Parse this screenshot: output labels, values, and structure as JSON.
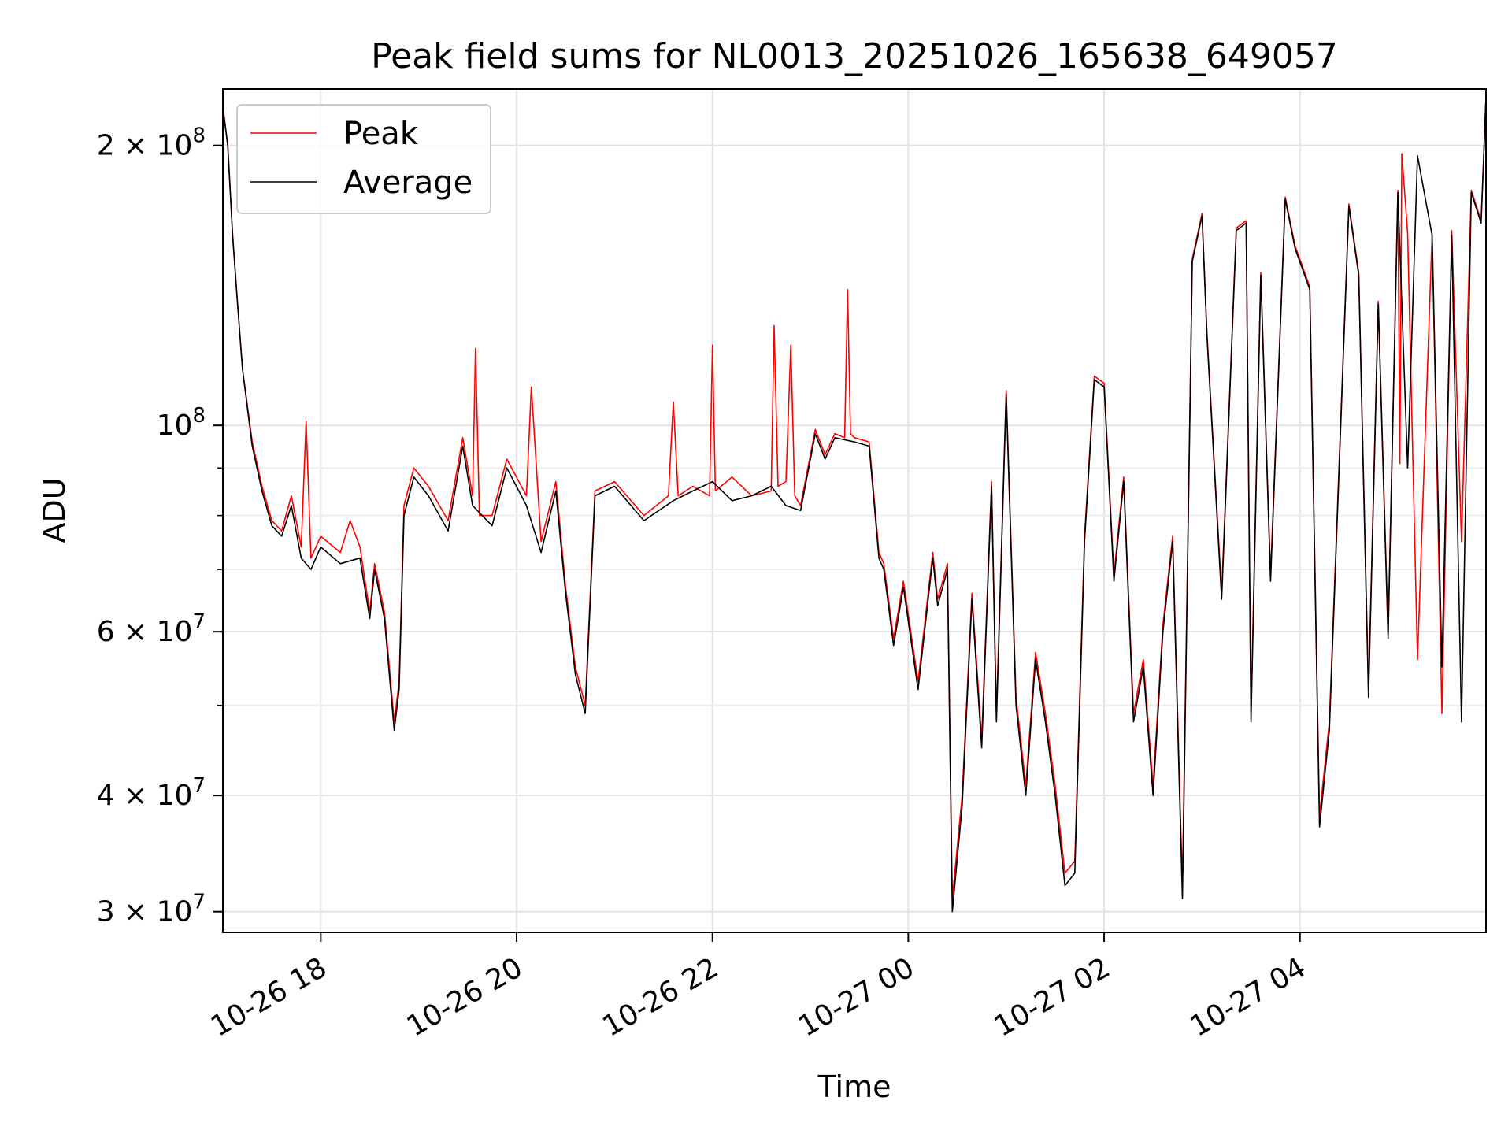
{
  "chart_data": {
    "type": "line",
    "title": "Peak field sums for NL0013_20251026_165638_649057",
    "xlabel": "Time",
    "ylabel": "ADU",
    "yscale": "log",
    "ylim": [
      28500000,
      230000000
    ],
    "xlim_hours": [
      17.0,
      5.9
    ],
    "x_ticks": [
      {
        "label": "10-26 18",
        "hour": 18
      },
      {
        "label": "10-26 20",
        "hour": 20
      },
      {
        "label": "10-26 22",
        "hour": 22
      },
      {
        "label": "10-27 00",
        "hour": 24
      },
      {
        "label": "10-27 02",
        "hour": 26
      },
      {
        "label": "10-27 04",
        "hour": 28
      }
    ],
    "y_ticks": [
      {
        "value": 30000000,
        "mant": "3",
        "exp": "7"
      },
      {
        "value": 40000000,
        "mant": "4",
        "exp": "7"
      },
      {
        "value": 60000000,
        "mant": "6",
        "exp": "7"
      },
      {
        "value": 100000000,
        "mant": "",
        "exp": "8"
      },
      {
        "value": 200000000,
        "mant": "2",
        "exp": "8"
      }
    ],
    "y_minor_ticks": [
      50000000,
      70000000,
      80000000,
      90000000
    ],
    "grid": true,
    "legend": {
      "position": "top-left",
      "entries": [
        {
          "name": "Peak",
          "color": "#ff0000"
        },
        {
          "name": "Average",
          "color": "#000000"
        }
      ]
    },
    "series": [
      {
        "name": "Average",
        "color": "#000000",
        "x_hours": [
          17.0,
          17.05,
          17.1,
          17.15,
          17.2,
          17.3,
          17.4,
          17.5,
          17.6,
          17.7,
          17.8,
          17.9,
          18.0,
          18.2,
          18.4,
          18.5,
          18.55,
          18.65,
          18.75,
          18.8,
          18.85,
          18.95,
          19.1,
          19.3,
          19.45,
          19.55,
          19.75,
          19.9,
          20.1,
          20.25,
          20.4,
          20.5,
          20.6,
          20.7,
          20.8,
          21.0,
          21.3,
          21.6,
          21.8,
          22.0,
          22.2,
          22.4,
          22.6,
          22.75,
          22.9,
          23.05,
          23.15,
          23.25,
          23.45,
          23.6,
          23.7,
          23.75,
          23.85,
          23.95,
          24.1,
          24.25,
          24.3,
          24.4,
          24.45,
          24.55,
          24.65,
          24.75,
          24.85,
          24.9,
          25.0,
          25.1,
          25.2,
          25.3,
          25.4,
          25.5,
          25.6,
          25.7,
          25.8,
          25.9,
          26.0,
          26.1,
          26.2,
          26.3,
          26.4,
          26.5,
          26.6,
          26.7,
          26.8,
          26.9,
          27.0,
          27.05,
          27.2,
          27.35,
          27.45,
          27.5,
          27.6,
          27.7,
          27.85,
          27.95,
          28.1,
          28.2,
          28.3,
          28.5,
          28.6,
          28.7,
          28.8,
          28.9,
          29.0,
          29.1,
          29.2,
          29.35,
          29.45,
          29.55,
          29.65,
          29.75,
          29.85,
          29.9
        ],
        "values": [
          220000000,
          200000000,
          160000000,
          135000000,
          115000000,
          95000000,
          85000000,
          78000000,
          76000000,
          82000000,
          72000000,
          70000000,
          74000000,
          71000000,
          72000000,
          62000000,
          70000000,
          62000000,
          47000000,
          52000000,
          80000000,
          88000000,
          84000000,
          77000000,
          95000000,
          82000000,
          78000000,
          90000000,
          82000000,
          73000000,
          85000000,
          66000000,
          54000000,
          49000000,
          84000000,
          86000000,
          79000000,
          83000000,
          85000000,
          87000000,
          83000000,
          84000000,
          86000000,
          82000000,
          81000000,
          98000000,
          92000000,
          97000000,
          96000000,
          95000000,
          72000000,
          70000000,
          58000000,
          67000000,
          52000000,
          72000000,
          64000000,
          70000000,
          30000000,
          39000000,
          65000000,
          45000000,
          86000000,
          48000000,
          108000000,
          50000000,
          40000000,
          56000000,
          48000000,
          40000000,
          32000000,
          33000000,
          75000000,
          112000000,
          110000000,
          68000000,
          87000000,
          48000000,
          55000000,
          40000000,
          60000000,
          75000000,
          31000000,
          150000000,
          168000000,
          125000000,
          65000000,
          162000000,
          165000000,
          48000000,
          145000000,
          68000000,
          175000000,
          155000000,
          140000000,
          37000000,
          47000000,
          172000000,
          145000000,
          51000000,
          135000000,
          59000000,
          178000000,
          90000000,
          195000000,
          160000000,
          55000000,
          160000000,
          48000000,
          178000000,
          165000000,
          225000000
        ]
      },
      {
        "name": "Peak",
        "color": "#ff0000",
        "x_hours": [
          17.0,
          17.05,
          17.1,
          17.15,
          17.2,
          17.3,
          17.4,
          17.5,
          17.6,
          17.7,
          17.8,
          17.85,
          17.9,
          18.0,
          18.2,
          18.3,
          18.4,
          18.5,
          18.55,
          18.65,
          18.75,
          18.8,
          18.85,
          18.95,
          19.1,
          19.3,
          19.45,
          19.55,
          19.58,
          19.62,
          19.75,
          19.9,
          20.1,
          20.15,
          20.25,
          20.4,
          20.5,
          20.6,
          20.7,
          20.8,
          21.0,
          21.3,
          21.55,
          21.6,
          21.65,
          21.8,
          21.97,
          22.0,
          22.03,
          22.2,
          22.4,
          22.6,
          22.63,
          22.67,
          22.75,
          22.8,
          22.84,
          22.9,
          23.05,
          23.15,
          23.25,
          23.35,
          23.38,
          23.41,
          23.45,
          23.6,
          23.7,
          23.75,
          23.85,
          23.95,
          24.1,
          24.25,
          24.3,
          24.4,
          24.45,
          24.55,
          24.65,
          24.75,
          24.85,
          24.9,
          25.0,
          25.1,
          25.2,
          25.3,
          25.4,
          25.5,
          25.6,
          25.7,
          25.8,
          25.9,
          26.0,
          26.1,
          26.2,
          26.3,
          26.4,
          26.5,
          26.6,
          26.7,
          26.8,
          26.9,
          27.0,
          27.05,
          27.2,
          27.35,
          27.45,
          27.5,
          27.6,
          27.7,
          27.85,
          27.95,
          28.1,
          28.2,
          28.3,
          28.5,
          28.6,
          28.7,
          28.8,
          28.9,
          29.0,
          29.02,
          29.04,
          29.1,
          29.2,
          29.35,
          29.45,
          29.55,
          29.65,
          29.75,
          29.85,
          29.9
        ],
        "values": [
          220000000,
          200000000,
          160000000,
          135000000,
          115000000,
          96000000,
          86000000,
          79000000,
          77000000,
          84000000,
          74000000,
          101000000,
          72000000,
          76000000,
          73000000,
          79000000,
          74000000,
          63000000,
          71000000,
          63000000,
          48000000,
          53000000,
          82000000,
          90000000,
          86000000,
          79000000,
          97000000,
          84000000,
          121000000,
          80000000,
          80000000,
          92000000,
          84000000,
          110000000,
          75000000,
          87000000,
          67000000,
          55000000,
          50000000,
          85000000,
          87000000,
          80000000,
          84000000,
          106000000,
          84000000,
          86000000,
          84000000,
          122000000,
          85000000,
          88000000,
          84000000,
          85000000,
          128000000,
          86000000,
          87000000,
          122000000,
          84000000,
          82000000,
          99000000,
          93000000,
          98000000,
          97000000,
          140000000,
          98000000,
          97000000,
          96000000,
          73000000,
          71000000,
          59000000,
          68000000,
          53000000,
          73000000,
          65000000,
          71000000,
          31000000,
          40000000,
          66000000,
          46000000,
          87000000,
          49000000,
          109000000,
          51000000,
          41000000,
          57000000,
          49000000,
          41000000,
          33000000,
          34000000,
          76000000,
          113000000,
          111000000,
          69000000,
          88000000,
          49000000,
          56000000,
          41000000,
          61000000,
          76000000,
          32000000,
          151000000,
          169000000,
          126000000,
          66000000,
          163000000,
          166000000,
          49000000,
          146000000,
          69000000,
          176000000,
          156000000,
          141000000,
          38000000,
          48000000,
          173000000,
          146000000,
          52000000,
          136000000,
          60000000,
          179000000,
          91000000,
          196000000,
          161000000,
          56000000,
          161000000,
          49000000,
          162000000,
          75000000,
          179000000,
          166000000,
          226000000
        ]
      }
    ]
  }
}
